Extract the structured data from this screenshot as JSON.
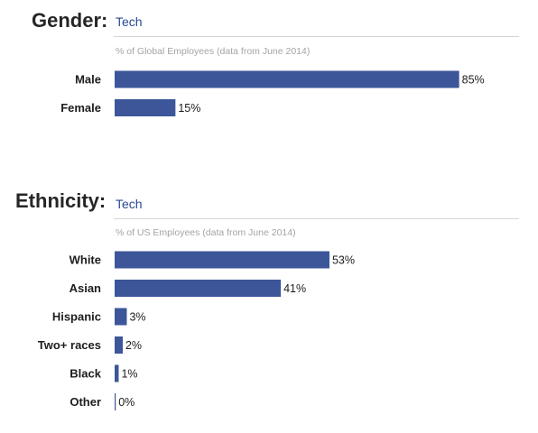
{
  "colors": {
    "bar": "#3c5699",
    "tab": "#2a4a92",
    "subtitle": "#a4a4a4",
    "rule": "#d6d6d6"
  },
  "gender": {
    "title": "Gender:",
    "tab": "Tech",
    "subtitle": "% of Global Employees (data from June 2014)"
  },
  "ethnicity": {
    "title": "Ethnicity:",
    "tab": "Tech",
    "subtitle": "% of US Employees (data from June 2014)"
  },
  "chart_data": [
    {
      "type": "bar",
      "orientation": "horizontal",
      "title": "Gender:",
      "subtitle": "% of Global Employees (data from June 2014)",
      "categories": [
        "Male",
        "Female"
      ],
      "values": [
        85,
        15
      ],
      "value_labels": [
        "85%",
        "15%"
      ],
      "xlim": [
        0,
        100
      ],
      "grid": false
    },
    {
      "type": "bar",
      "orientation": "horizontal",
      "title": "Ethnicity:",
      "subtitle": "% of US Employees (data from June 2014)",
      "categories": [
        "White",
        "Asian",
        "Hispanic",
        "Two+ races",
        "Black",
        "Other"
      ],
      "values": [
        53,
        41,
        3,
        2,
        1,
        0
      ],
      "value_labels": [
        "53%",
        "41%",
        "3%",
        "2%",
        "1%",
        "0%"
      ],
      "xlim": [
        0,
        100
      ],
      "grid": false
    }
  ]
}
